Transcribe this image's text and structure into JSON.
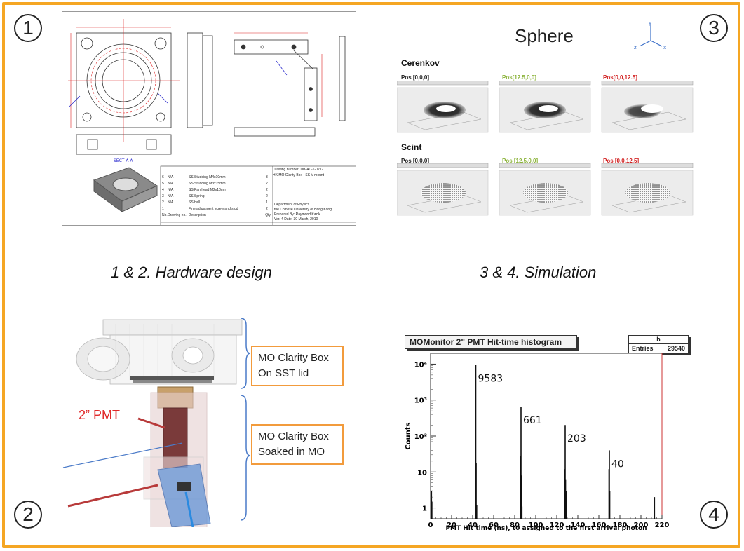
{
  "markers": {
    "one": "1",
    "two": "2",
    "three": "3",
    "four": "4"
  },
  "captions": {
    "hardware": "1 & 2. Hardware  design",
    "simulation": "3 & 4. Simulation"
  },
  "drawing": {
    "section_label": "SECT A-A",
    "drawing_number": "Drawing number:  DB-AD-1-0212",
    "title": "HK MO Clarity Box - SS V-mount",
    "parts": [
      {
        "no": "6",
        "dwg": "N/A",
        "desc": "SS Studding M4x10mm",
        "qty": "3"
      },
      {
        "no": "5",
        "dwg": "N/A",
        "desc": "SS Studding M3x15mm",
        "qty": "2"
      },
      {
        "no": "4",
        "dwg": "N/A",
        "desc": "SS Pan head M2x10mm",
        "qty": "2"
      },
      {
        "no": "3",
        "dwg": "N/A",
        "desc": "SS Spring",
        "qty": "2"
      },
      {
        "no": "2",
        "dwg": "N/A",
        "desc": "SS ball",
        "qty": "1"
      },
      {
        "no": "1",
        "dwg": "",
        "desc": "Fine adjustment screw and stud",
        "qty": "2"
      }
    ],
    "header_no": "No.",
    "header_dwg": "Drawing no.",
    "header_desc": "Description",
    "header_qty": "Qty.",
    "dept": "Department of Physics",
    "univ": "the Chinese University of Hong Kong",
    "prepared_by_label": "Prepared By:",
    "prepared_by": "Raymond Kwok",
    "ver": "Ver. 4",
    "date_label": "Date:",
    "date": "30 March, 2010"
  },
  "simulation": {
    "title": "Sphere",
    "sections": [
      {
        "label": "Cerenkov",
        "positions": [
          {
            "text": "Pos [0,0,0]",
            "color": "#111111"
          },
          {
            "text": "Pos[12.5,0,0]",
            "color": "#8bb33a"
          },
          {
            "text": "Pos[0,0,12.5]",
            "color": "#d22020"
          }
        ]
      },
      {
        "label": "Scint",
        "positions": [
          {
            "text": "Pos [0,0,0]",
            "color": "#111111"
          },
          {
            "text": "Pos [12.5,0,0]",
            "color": "#8bb33a"
          },
          {
            "text": "Pos [0,0,12.5]",
            "color": "#d22020"
          }
        ]
      }
    ],
    "axes": {
      "y": "y",
      "z": "z",
      "x": "x"
    }
  },
  "hardware_model": {
    "callout_top": [
      "MO Clarity Box",
      "On SST lid"
    ],
    "callout_bottom": [
      "MO Clarity Box",
      "Soaked in MO"
    ],
    "pmt_label": "2” PMT"
  },
  "histogram": {
    "title": "MOMonitor 2\" PMT Hit-time histogram",
    "stats_name": "h",
    "stats_entries_label": "Entries",
    "stats_entries": "29540",
    "xlabel": "PMT Hit time (ns), t0 assigned to the first arrival photon",
    "ylabel": "Counts"
  },
  "chart_data": {
    "type": "bar",
    "title": "MOMonitor 2\" PMT Hit-time histogram",
    "xlabel": "PMT Hit time (ns), t0 assigned to the first arrival photon",
    "ylabel": "Counts",
    "xlim": [
      0,
      220
    ],
    "ylim": [
      0.5,
      20000
    ],
    "yscale": "log",
    "x_ticks": [
      0,
      20,
      40,
      60,
      80,
      100,
      120,
      140,
      160,
      180,
      200,
      220
    ],
    "y_tick_labels": [
      "1",
      "10",
      "10²",
      "10³",
      "10⁴"
    ],
    "peaks": [
      {
        "x": 43,
        "value": 9583,
        "label": "9583"
      },
      {
        "x": 86,
        "value": 661,
        "label": "661"
      },
      {
        "x": 128,
        "value": 203,
        "label": "203"
      },
      {
        "x": 170,
        "value": 40,
        "label": "40"
      }
    ],
    "minor_bins": [
      {
        "x": 1,
        "value": 3
      },
      {
        "x": 2,
        "value": 1.5
      },
      {
        "x": 42.5,
        "value": 55
      },
      {
        "x": 43.5,
        "value": 18
      },
      {
        "x": 44,
        "value": 1.2
      },
      {
        "x": 85.5,
        "value": 28
      },
      {
        "x": 86.5,
        "value": 8
      },
      {
        "x": 87,
        "value": 1.1
      },
      {
        "x": 127.5,
        "value": 12
      },
      {
        "x": 128.5,
        "value": 6
      },
      {
        "x": 129,
        "value": 3
      },
      {
        "x": 169.5,
        "value": 12
      },
      {
        "x": 170.5,
        "value": 3
      },
      {
        "x": 213,
        "value": 2
      }
    ],
    "grid": false
  }
}
